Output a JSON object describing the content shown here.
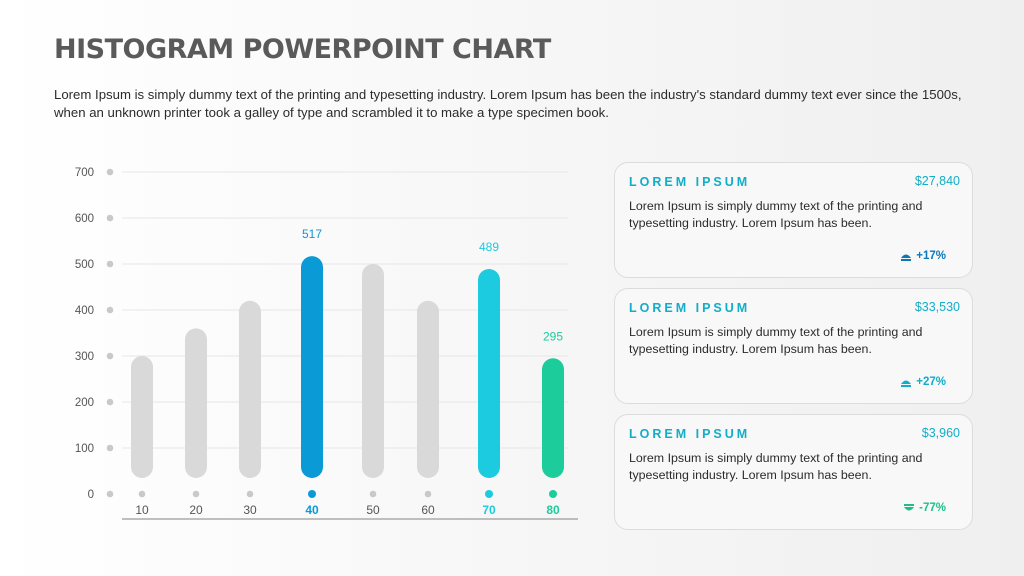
{
  "page": {
    "title": "HISTOGRAM POWERPOINT CHART",
    "description": "Lorem Ipsum is simply dummy text of the printing and typesetting industry. Lorem Ipsum has been the industry's standard dummy text ever since the 1500s, when an unknown printer took a galley of type and scrambled it to make a type specimen book."
  },
  "chart_data": {
    "type": "bar",
    "categories": [
      "10",
      "20",
      "30",
      "40",
      "50",
      "60",
      "70",
      "80"
    ],
    "values": [
      300,
      360,
      420,
      517,
      500,
      420,
      489,
      295
    ],
    "data_labels": [
      "",
      "",
      "",
      "517",
      "",
      "",
      "489",
      "295"
    ],
    "highlight_colors": [
      "#d9d9d9",
      "#d9d9d9",
      "#d9d9d9",
      "#0a9ad6",
      "#d9d9d9",
      "#d9d9d9",
      "#1ccbdf",
      "#1ccc9a"
    ],
    "label_colors": [
      "#555555",
      "#555555",
      "#555555",
      "#0a9ad6",
      "#555555",
      "#555555",
      "#1ccbdf",
      "#1ccc9a"
    ],
    "y_ticks": [
      "0",
      "100",
      "200",
      "300",
      "400",
      "500",
      "600",
      "700"
    ],
    "ylim": [
      0,
      700
    ],
    "grid": true,
    "title": "",
    "xlabel": "",
    "ylabel": ""
  },
  "cards": [
    {
      "title": "LOREM IPSUM",
      "amount": "$27,840",
      "text": "Lorem Ipsum is simply dummy text of the printing and typesetting industry. Lorem Ipsum has been.",
      "change": "+17%",
      "direction": "up",
      "icon": "up-arrow-icon",
      "color": "#0a78b8"
    },
    {
      "title": "LOREM IPSUM",
      "amount": "$33,530",
      "text": "Lorem Ipsum is simply dummy text of the printing and typesetting industry. Lorem Ipsum has been.",
      "change": "+27%",
      "direction": "up",
      "icon": "up-arrow-icon",
      "color": "#10aec8"
    },
    {
      "title": "LOREM IPSUM",
      "amount": "$3,960",
      "text": "Lorem Ipsum is simply dummy text of the printing and typesetting industry. Lorem Ipsum has been.",
      "change": "-77%",
      "direction": "down",
      "icon": "down-arrow-icon",
      "color": "#1cbf8a"
    }
  ]
}
